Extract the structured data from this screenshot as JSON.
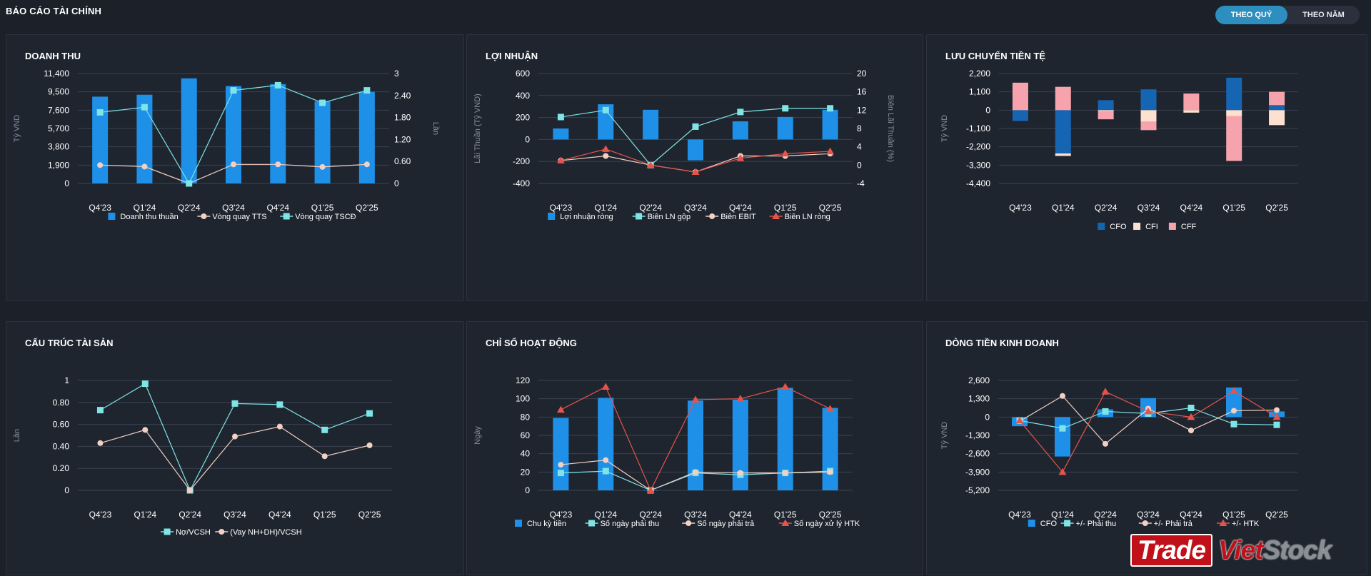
{
  "page": {
    "title": "BÁO CÁO TÀI CHÍNH",
    "toggle": {
      "quarter": "THEO QUÝ",
      "year": "THEO NĂM"
    },
    "watermark": {
      "part1": "Trade",
      "part2": "Viet",
      "part3": "Stock"
    }
  },
  "colors": {
    "bar": "#1e90e8",
    "cyan": "#7ee4e6",
    "peach": "#f2d0c4",
    "red": "#e5534b",
    "cfo_dark": "#1565b3",
    "cfi": "#fde0cf",
    "cff": "#f7a3ad",
    "grid": "#3a4250",
    "axis": "#aab2bf",
    "muted": "#858e9b"
  },
  "chart_data": [
    {
      "id": "revenue",
      "title": "DOANH THU",
      "type": "bar",
      "categories": [
        "Q4'23",
        "Q1'24",
        "Q2'24",
        "Q3'24",
        "Q4'24",
        "Q1'25",
        "Q2'25"
      ],
      "series": [
        {
          "name": "Doanh thu thuần",
          "kind": "bar",
          "axis": "left",
          "values": [
            9000,
            9200,
            10900,
            10100,
            10300,
            8500,
            9500
          ]
        },
        {
          "name": "Vòng quay TTS",
          "kind": "line",
          "axis": "right",
          "marker": "circle",
          "values": [
            0.5,
            0.46,
            0,
            0.52,
            0.52,
            0.45,
            0.52
          ]
        },
        {
          "name": "Vòng quay TSCĐ",
          "kind": "line",
          "axis": "right",
          "marker": "square",
          "values": [
            1.94,
            2.08,
            0,
            2.54,
            2.68,
            2.2,
            2.54
          ]
        }
      ],
      "ylabel": "Tỷ VND",
      "y2label": "Lần",
      "yticks": [
        0,
        1900,
        3800,
        5700,
        7600,
        9500,
        11400
      ],
      "yticklabels": [
        "0",
        "1,900",
        "3,800",
        "5,700",
        "7,600",
        "9,500",
        "11,400"
      ],
      "ylim": [
        0,
        11400
      ],
      "y2ticks": [
        0,
        0.6,
        1.2,
        1.8,
        2.4,
        3
      ],
      "y2ticklabels": [
        "0",
        "0.60",
        "1.20",
        "1.80",
        "2.40",
        "3"
      ],
      "y2lim": [
        0,
        3
      ]
    },
    {
      "id": "profit",
      "title": "LỢI NHUẬN",
      "type": "bar",
      "categories": [
        "Q4'23",
        "Q1'24",
        "Q2'24",
        "Q3'24",
        "Q4'24",
        "Q1'25",
        "Q2'25"
      ],
      "series": [
        {
          "name": "Lợi nhuận ròng",
          "kind": "bar",
          "axis": "left",
          "values": [
            100,
            320,
            270,
            -190,
            165,
            205,
            270
          ]
        },
        {
          "name": "Biên LN gộp",
          "kind": "line",
          "axis": "right",
          "marker": "square",
          "values": [
            10.5,
            12,
            0,
            8.4,
            11.6,
            12.4,
            12.4
          ]
        },
        {
          "name": "Biên EBIT",
          "kind": "line",
          "axis": "right",
          "marker": "circle",
          "values": [
            1,
            2,
            0,
            -1.5,
            2,
            2,
            2.5
          ]
        },
        {
          "name": "Biên LN ròng",
          "kind": "line",
          "axis": "right",
          "marker": "triangle",
          "values": [
            1,
            3.5,
            0,
            -1.5,
            1.5,
            2.5,
            3
          ]
        }
      ],
      "ylabel": "Lãi Thuần (Tỷ VND)",
      "y2label": "Biên Lãi Thuần (%)",
      "yticks": [
        -400,
        -200,
        0,
        200,
        400,
        600
      ],
      "yticklabels": [
        "-400",
        "-200",
        "0",
        "200",
        "400",
        "600"
      ],
      "ylim": [
        -400,
        600
      ],
      "y2ticks": [
        -4,
        0,
        4,
        8,
        12,
        16,
        20
      ],
      "y2ticklabels": [
        "-4",
        "0",
        "4",
        "8",
        "12",
        "16",
        "20"
      ],
      "y2lim": [
        -4,
        20
      ]
    },
    {
      "id": "cashflow",
      "title": "LƯU CHUYỂN TIỀN TỆ",
      "type": "bar",
      "stacked": true,
      "categories": [
        "Q4'23",
        "Q1'24",
        "Q2'24",
        "Q3'24",
        "Q4'24",
        "Q1'25",
        "Q2'25"
      ],
      "series": [
        {
          "name": "CFO",
          "kind": "bar",
          "values": [
            -650,
            -2600,
            600,
            1250,
            0,
            1950,
            300
          ]
        },
        {
          "name": "CFI",
          "kind": "bar",
          "values": [
            0,
            -150,
            -50,
            -700,
            -150,
            -350,
            -900
          ]
        },
        {
          "name": "CFF",
          "kind": "bar",
          "values": [
            1650,
            1400,
            -500,
            -500,
            1000,
            -2700,
            800
          ]
        }
      ],
      "ylabel": "Tỷ VND",
      "yticks": [
        -4400,
        -3300,
        -2200,
        -1100,
        0,
        1100,
        2200
      ],
      "yticklabels": [
        "-4,400",
        "-3,300",
        "-2,200",
        "-1,100",
        "0",
        "1,100",
        "2,200"
      ],
      "ylim": [
        -4400,
        2200
      ]
    },
    {
      "id": "assets",
      "title": "CẤU TRÚC TÀI SẢN",
      "type": "line",
      "categories": [
        "Q4'23",
        "Q1'24",
        "Q2'24",
        "Q3'24",
        "Q4'24",
        "Q1'25",
        "Q2'25"
      ],
      "series": [
        {
          "name": "Nợ/VCSH",
          "kind": "line",
          "marker": "square",
          "values": [
            0.73,
            0.97,
            0,
            0.79,
            0.78,
            0.55,
            0.7
          ]
        },
        {
          "name": "(Vay NH+DH)/VCSH",
          "kind": "line",
          "marker": "circle",
          "values": [
            0.43,
            0.55,
            0,
            0.49,
            0.58,
            0.31,
            0.41
          ]
        }
      ],
      "ylabel": "Lần",
      "yticks": [
        0,
        0.2,
        0.4,
        0.6,
        0.8,
        1
      ],
      "yticklabels": [
        "0",
        "0.20",
        "0.40",
        "0.60",
        "0.80",
        "1"
      ],
      "ylim": [
        0,
        1
      ]
    },
    {
      "id": "activity",
      "title": "CHỈ SỐ HOẠT ĐỘNG",
      "type": "bar",
      "categories": [
        "Q4'23",
        "Q1'24",
        "Q2'24",
        "Q3'24",
        "Q4'24",
        "Q1'25",
        "Q2'25"
      ],
      "series": [
        {
          "name": "Chu kỳ tiền",
          "kind": "bar",
          "values": [
            79,
            101,
            0,
            98,
            99,
            112,
            90
          ]
        },
        {
          "name": "Số ngày phải thu",
          "kind": "line",
          "marker": "square",
          "values": [
            19,
            21,
            0,
            19,
            17,
            19,
            21
          ]
        },
        {
          "name": "Số ngày phải trả",
          "kind": "line",
          "marker": "circle",
          "values": [
            28,
            33,
            0,
            20,
            19,
            19,
            20
          ]
        },
        {
          "name": "Số ngày xử lý HTK",
          "kind": "line",
          "marker": "triangle",
          "values": [
            88,
            113,
            0,
            99,
            100,
            113,
            89
          ]
        }
      ],
      "ylabel": "Ngày",
      "yticks": [
        0,
        20,
        40,
        60,
        80,
        100,
        120
      ],
      "yticklabels": [
        "0",
        "20",
        "40",
        "60",
        "80",
        "100",
        "120"
      ],
      "ylim": [
        0,
        120
      ]
    },
    {
      "id": "opcash",
      "title": "DÒNG TIỀN KINH DOANH",
      "type": "bar",
      "categories": [
        "Q4'23",
        "Q1'24",
        "Q2'24",
        "Q3'24",
        "Q4'24",
        "Q1'25",
        "Q2'25"
      ],
      "series": [
        {
          "name": "CFO",
          "kind": "bar",
          "values": [
            -650,
            -2800,
            550,
            1350,
            0,
            2100,
            400
          ]
        },
        {
          "name": "+/- Phải thu",
          "kind": "line",
          "marker": "square",
          "values": [
            -250,
            -800,
            400,
            250,
            650,
            -500,
            -550
          ]
        },
        {
          "name": "+/- Phải trả",
          "kind": "line",
          "marker": "circle",
          "values": [
            -300,
            1500,
            -1900,
            600,
            -950,
            450,
            500
          ]
        },
        {
          "name": "+/- HTK",
          "kind": "line",
          "marker": "triangle",
          "values": [
            -250,
            -3900,
            1800,
            400,
            0,
            1850,
            0
          ]
        }
      ],
      "ylabel": "Tỷ VND",
      "yticks": [
        -5200,
        -3900,
        -2600,
        -1300,
        0,
        1300,
        2600
      ],
      "yticklabels": [
        "-5,200",
        "-3,900",
        "-2,600",
        "-1,300",
        "0",
        "1,300",
        "2,600"
      ],
      "ylim": [
        -5200,
        2600
      ]
    }
  ]
}
